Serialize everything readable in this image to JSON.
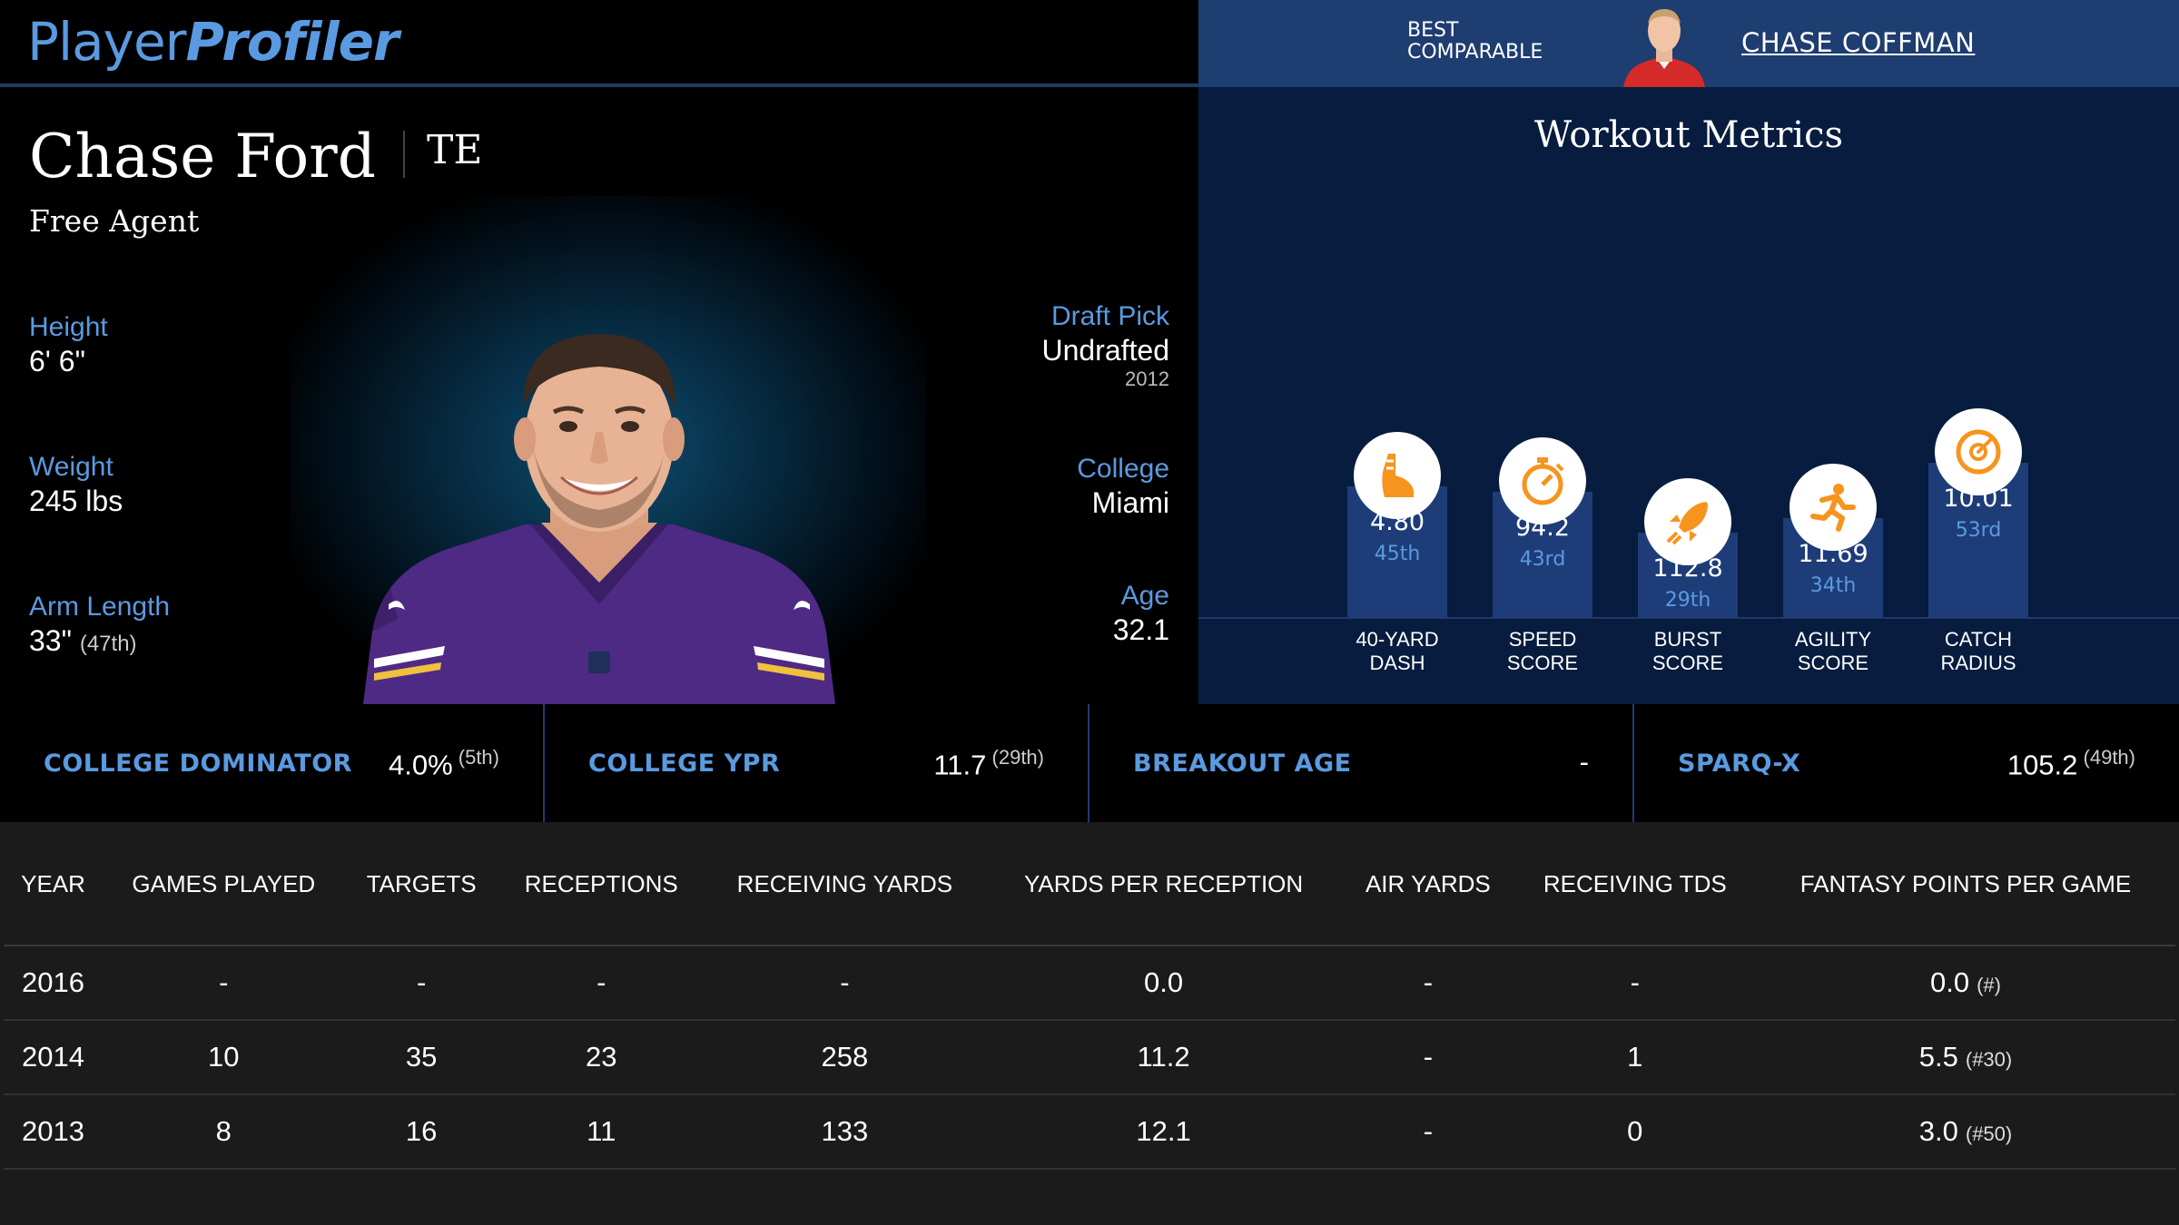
{
  "brand": {
    "part1": "Player",
    "part2": "Profiler"
  },
  "comparable": {
    "label_line1": "BEST",
    "label_line2": "COMPARABLE",
    "name": "CHASE COFFMAN"
  },
  "player": {
    "name": "Chase Ford",
    "position": "TE",
    "team": "Free Agent",
    "height_label": "Height",
    "height": "6' 6\"",
    "weight_label": "Weight",
    "weight": "245 lbs",
    "arm_label": "Arm Length",
    "arm": "33\"",
    "arm_pct": "(47th)",
    "draft_label": "Draft Pick",
    "draft": "Undrafted",
    "draft_year": "2012",
    "college_label": "College",
    "college": "Miami",
    "age_label": "Age",
    "age": "32.1"
  },
  "workout": {
    "title": "Workout Metrics",
    "metrics": [
      {
        "label": "40-YARD DASH",
        "value": "4.80",
        "rank": "45th",
        "percentile": 45,
        "icon": "shoe-icon"
      },
      {
        "label": "SPEED SCORE",
        "value": "94.2",
        "rank": "43rd",
        "percentile": 43,
        "icon": "stopwatch-icon"
      },
      {
        "label": "BURST SCORE",
        "value": "112.8",
        "rank": "29th",
        "percentile": 29,
        "icon": "rocket-icon"
      },
      {
        "label": "AGILITY SCORE",
        "value": "11.69",
        "rank": "34th",
        "percentile": 34,
        "icon": "runner-icon"
      },
      {
        "label": "CATCH RADIUS",
        "value": "10.01",
        "rank": "53rd",
        "percentile": 53,
        "icon": "target-icon"
      }
    ]
  },
  "summary": [
    {
      "label": "COLLEGE DOMINATOR",
      "value": "4.0%",
      "rank": "(5th)"
    },
    {
      "label": "COLLEGE YPR",
      "value": "11.7",
      "rank": "(29th)"
    },
    {
      "label": "BREAKOUT AGE",
      "value": "-",
      "rank": ""
    },
    {
      "label": "SPARQ-x",
      "value": "105.2",
      "rank": "(49th)"
    }
  ],
  "table": {
    "headers": [
      "YEAR",
      "GAMES PLAYED",
      "TARGETS",
      "RECEPTIONS",
      "RECEIVING YARDS",
      "YARDS PER RECEPTION",
      "AIR YARDS",
      "RECEIVING TDS",
      "FANTASY POINTS PER GAME"
    ],
    "rows": [
      [
        "2016",
        "-",
        "-",
        "-",
        "-",
        "0.0",
        "-",
        "-",
        "0.0",
        "(#)"
      ],
      [
        "2014",
        "10",
        "35",
        "23",
        "258",
        "11.2",
        "-",
        "1",
        "5.5",
        "(#30)"
      ],
      [
        "2013",
        "8",
        "16",
        "11",
        "133",
        "12.1",
        "-",
        "0",
        "3.0",
        "(#50)"
      ]
    ]
  },
  "colors": {
    "accent": "#5a9ae0",
    "bar": "#1e3d78",
    "orange": "#f7941d",
    "panel": "#071c3e"
  }
}
